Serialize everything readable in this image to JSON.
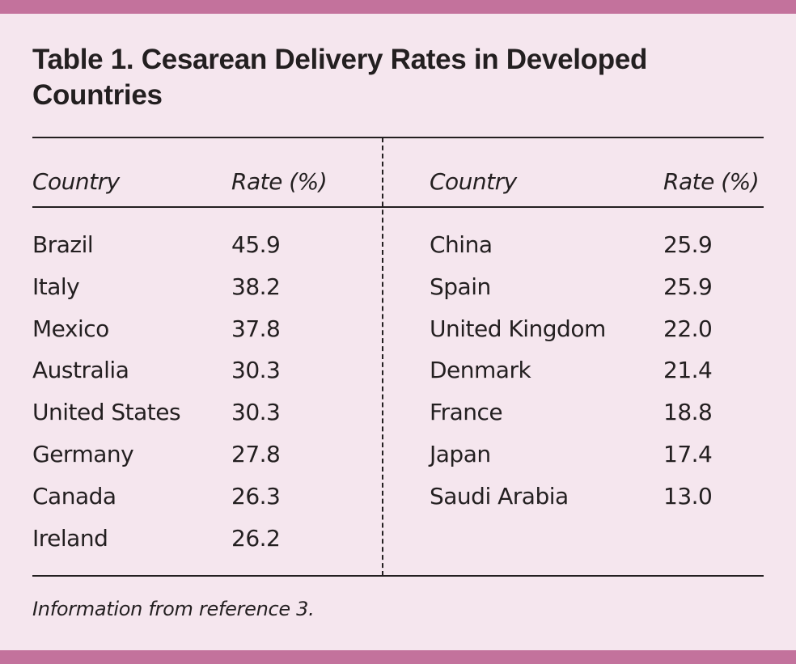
{
  "title": "Table 1. Cesarean Delivery Rates in Developed Countries",
  "columns": {
    "left": {
      "country_header": "Country",
      "rate_header": "Rate (%)"
    },
    "right": {
      "country_header": "Country",
      "rate_header": "Rate (%)"
    }
  },
  "rows_left": [
    {
      "country": "Brazil",
      "rate": "45.9"
    },
    {
      "country": "Italy",
      "rate": "38.2"
    },
    {
      "country": "Mexico",
      "rate": "37.8"
    },
    {
      "country": "Australia",
      "rate": "30.3"
    },
    {
      "country": "United States",
      "rate": "30.3"
    },
    {
      "country": "Germany",
      "rate": "27.8"
    },
    {
      "country": "Canada",
      "rate": "26.3"
    },
    {
      "country": "Ireland",
      "rate": "26.2"
    }
  ],
  "rows_right": [
    {
      "country": "China",
      "rate": "25.9"
    },
    {
      "country": "Spain",
      "rate": "25.9"
    },
    {
      "country": "United Kingdom",
      "rate": "22.0"
    },
    {
      "country": "Denmark",
      "rate": "21.4"
    },
    {
      "country": "France",
      "rate": "18.8"
    },
    {
      "country": "Japan",
      "rate": "17.4"
    },
    {
      "country": "Saudi Arabia",
      "rate": "13.0"
    }
  ],
  "footnote": "Information from reference 3.",
  "colors": {
    "accent_bar": "#c3729c",
    "background": "#f5e6ee",
    "text": "#231f20"
  }
}
